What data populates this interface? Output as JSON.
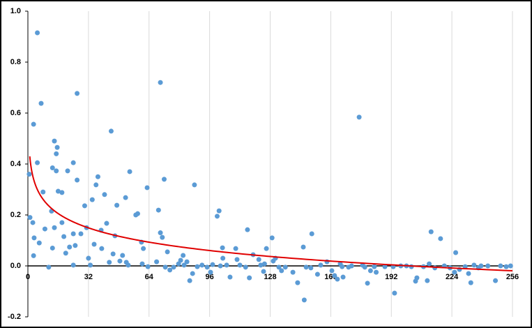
{
  "chart_data": {
    "type": "scatter",
    "x": [
      0.7,
      1.1,
      2.6,
      3,
      5,
      5,
      3.3,
      3,
      7,
      8,
      9,
      6,
      11,
      12.5,
      13,
      14,
      15,
      15.5,
      15,
      16,
      18,
      18,
      13,
      14,
      19,
      20,
      21,
      22,
      24,
      24,
      26,
      26,
      25,
      24,
      28,
      30,
      31,
      32,
      33,
      34,
      35,
      36,
      37,
      38.7,
      39,
      40.5,
      41.6,
      43,
      44,
      45,
      46,
      47,
      48.6,
      50,
      51.6,
      52,
      53.8,
      53,
      57,
      58,
      60,
      61,
      60.4,
      63,
      63.4,
      68,
      69,
      70,
      70,
      71,
      72,
      72.6,
      73.7,
      75,
      77,
      79.6,
      80.7,
      82,
      82.5,
      84,
      85.5,
      87,
      88,
      89.5,
      92,
      94.7,
      96.5,
      97.6,
      100,
      101,
      101.7,
      102.8,
      103,
      105,
      106.8,
      109.8,
      110.5,
      112,
      115,
      116,
      117,
      119,
      122,
      123,
      124.5,
      125,
      126,
      129,
      129.6,
      130.8,
      132.6,
      134,
      136,
      140,
      142.5,
      145.5,
      146,
      147,
      149.5,
      150,
      153,
      154.7,
      158,
      160.6,
      162,
      163.5,
      165,
      166,
      166.5,
      169.4,
      171,
      175,
      176.8,
      178,
      179.4,
      181,
      183,
      184,
      188.6,
      193,
      193.7,
      197,
      200,
      202.6,
      204.8,
      205.5,
      209,
      211,
      212,
      213,
      215,
      218,
      220,
      223,
      225.4,
      226,
      228,
      231,
      232.8,
      234,
      235.7,
      238,
      239.4,
      243,
      247,
      249.7,
      252.7,
      255
    ],
    "series": [
      {
        "color": "#5b9bd5",
        "values": [
          0.36,
          0.19,
          0.17,
          0.556,
          0.915,
          0.405,
          0.11,
          0.04,
          0.638,
          0.29,
          0.145,
          0.09,
          -0.005,
          0.215,
          0.385,
          0.49,
          0.44,
          0.465,
          0.373,
          0.293,
          0.288,
          0.17,
          0.07,
          0.15,
          0.115,
          0.05,
          0.373,
          0.074,
          0.126,
          0.405,
          0.677,
          0.337,
          0.08,
          0.003,
          0.126,
          0.236,
          0.15,
          0.03,
          0.003,
          0.26,
          0.085,
          0.318,
          0.35,
          0.14,
          0.068,
          0.28,
          0.167,
          0.014,
          0.529,
          0.047,
          0.118,
          0.238,
          0.019,
          0.041,
          0.268,
          0.014,
          0.37,
          0.003,
          0.2,
          0.205,
          0.093,
          0.068,
          0.008,
          0.307,
          -0.003,
          0.016,
          0.219,
          0.72,
          0.13,
          0.112,
          0.34,
          -0.005,
          0.055,
          -0.016,
          -0.005,
          0.008,
          0.022,
          0.041,
          0.003,
          0.016,
          -0.058,
          -0.03,
          0.318,
          -0.003,
          0.003,
          -0.005,
          -0.025,
          0.005,
          0.195,
          0.216,
          0,
          0.071,
          0.03,
          0.003,
          -0.044,
          0.068,
          0.025,
          0.003,
          -0.005,
          0.142,
          -0.047,
          0.044,
          0.025,
          0.003,
          -0.022,
          0.008,
          0.068,
          0.11,
          0.019,
          0.03,
          -0.005,
          -0.019,
          -0.005,
          -0.025,
          -0.066,
          0.074,
          -0.134,
          -0.005,
          -0.008,
          0.126,
          -0.033,
          0.003,
          0.016,
          -0.019,
          -0.038,
          -0.052,
          0.008,
          -0.003,
          -0.044,
          -0.005,
          0,
          0.584,
          0.003,
          -0.005,
          -0.068,
          -0.019,
          -0.003,
          -0.025,
          -0.003,
          -0.003,
          -0.107,
          0,
          0,
          -0.003,
          -0.06,
          -0.047,
          -0.003,
          -0.058,
          0.008,
          0.134,
          -0.008,
          0.107,
          0,
          -0.008,
          -0.025,
          0.052,
          -0.014,
          -0.003,
          -0.03,
          -0.066,
          0.003,
          -0.008,
          0,
          0,
          -0.058,
          0,
          -0.003,
          0
        ]
      }
    ],
    "trendline": {
      "type": "log",
      "a": 0.43,
      "b": -0.081,
      "color": "#e00000"
    },
    "xlim": [
      0,
      256
    ],
    "xticks": [
      0,
      32,
      64,
      96,
      128,
      160,
      192,
      224,
      256
    ],
    "ylim": [
      -0.2,
      1
    ],
    "yticks": [
      -0.2,
      {
        "value": 0,
        "label": "0.0"
      },
      0.2,
      0.4,
      0.6,
      0.8,
      {
        "value": 1,
        "label": "1.0"
      }
    ],
    "grid": true
  }
}
